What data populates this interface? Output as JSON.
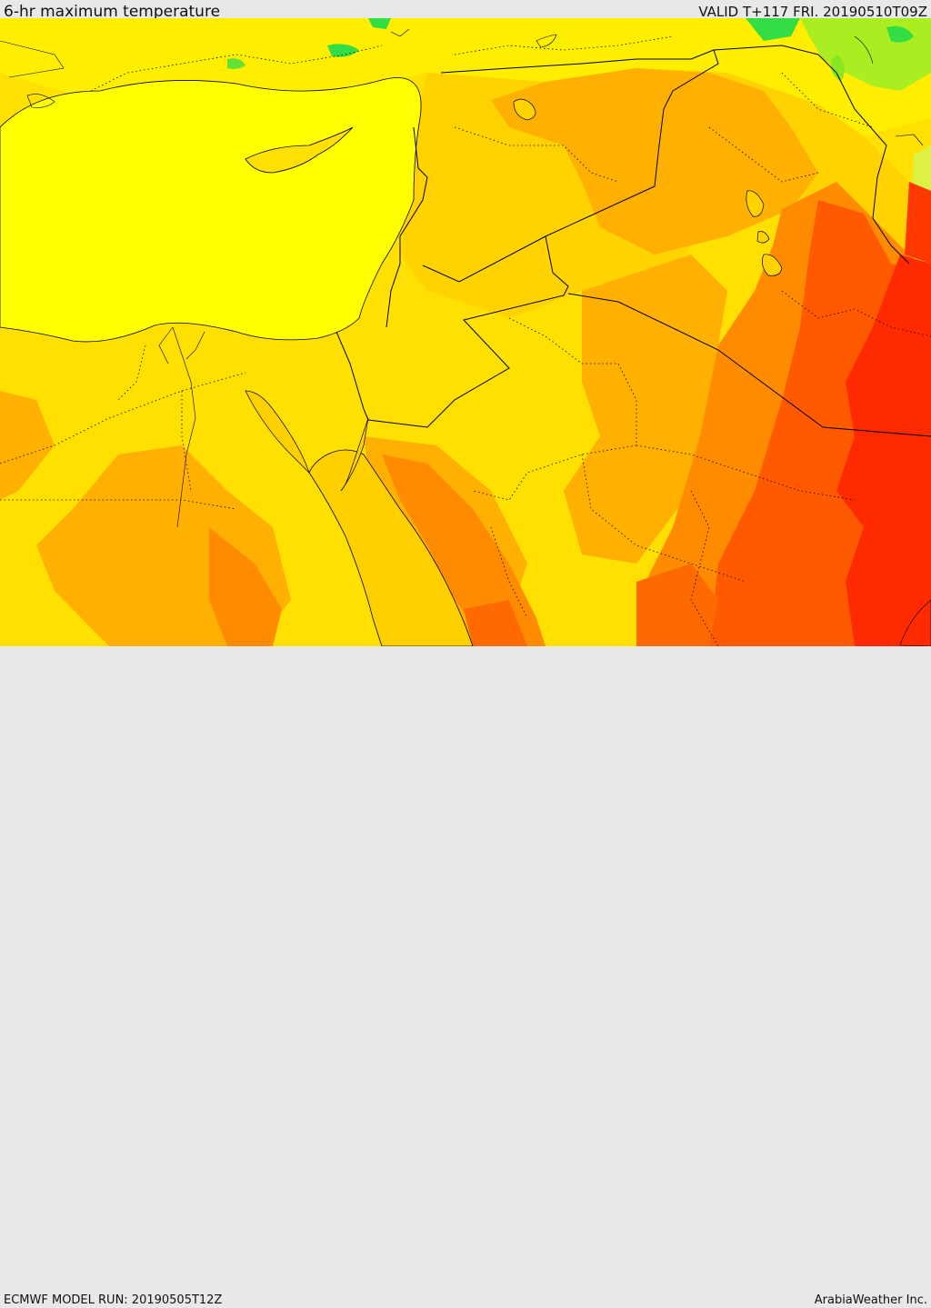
{
  "header": {
    "title": "6-hr maximum temperature",
    "valid": "VALID T+117 FRI. 20190510T09Z"
  },
  "footer": {
    "model_run": "ECMWF MODEL RUN: 20190505T12Z",
    "credit": "ArabiaWeather Inc."
  },
  "colors": {
    "sea": "#ffff00",
    "green": "#33dd44",
    "light_green": "#aaee22",
    "yellow_warm": "#ffe400",
    "gold": "#ffd200",
    "orange_light": "#ffaa00",
    "orange": "#ff8800",
    "red_orange": "#ff5500",
    "red": "#ff2a00",
    "border": "#000000"
  }
}
